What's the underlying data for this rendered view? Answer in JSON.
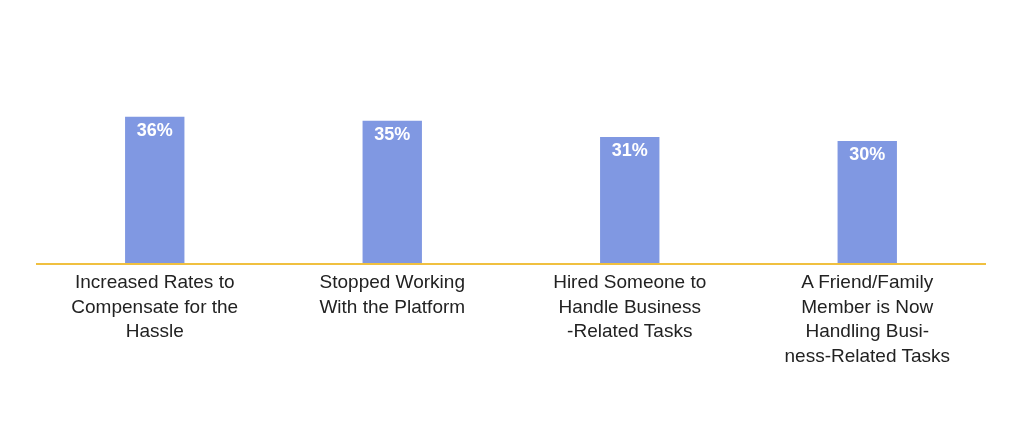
{
  "chart_data": {
    "type": "bar",
    "categories": [
      "Increased Rates to\nCompensate for the\nHassle",
      "Stopped Working\nWith the Platform",
      "Hired Someone to\nHandle Business\n-Related Tasks",
      "A Friend/Family\nMember is Now\nHandling Busi-\nness-Related Tasks"
    ],
    "values": [
      36,
      35,
      31,
      30
    ],
    "value_labels": [
      "36%",
      "35%",
      "31%",
      "30%"
    ],
    "color": "#8098e2",
    "legend": false
  }
}
